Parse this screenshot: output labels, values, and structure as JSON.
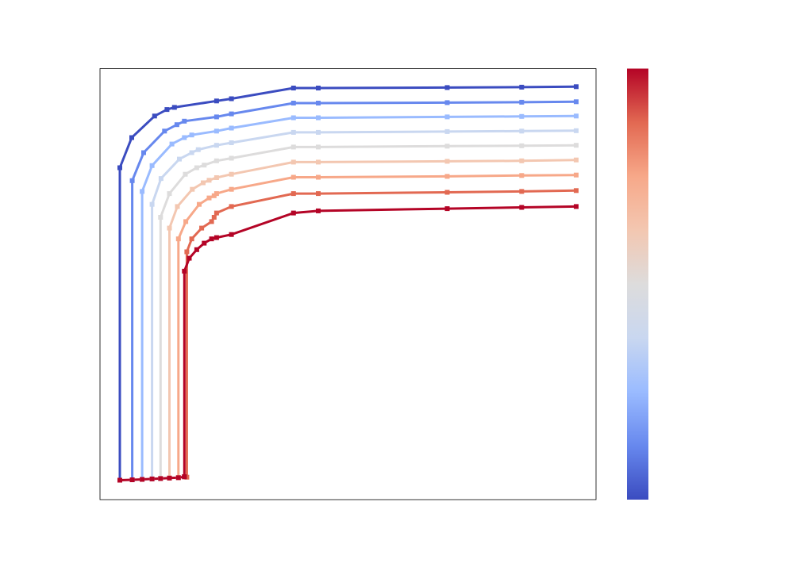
{
  "chart_data": {
    "type": "line",
    "title": "",
    "xlabel": "",
    "ylabel": "",
    "xlim": [
      0,
      100
    ],
    "ylim": [
      0,
      100
    ],
    "grid": false,
    "legend": "none",
    "marker": "square",
    "colormap": {
      "name": "coolwarm",
      "stops": [
        "#3b4cc0",
        "#6788ee",
        "#9abbff",
        "#c9d7f0",
        "#dddcdc",
        "#f3c7b1",
        "#f7a889",
        "#e26952",
        "#b40426"
      ],
      "position": "right",
      "tick_labels": []
    },
    "series": [
      {
        "color": "#3b4cc0",
        "x": [
          4.0,
          4.0,
          6.4,
          11.0,
          13.5,
          15.0,
          23.5,
          26.5,
          39.0,
          44.0,
          70.0,
          85.0,
          96.0
        ],
        "y": [
          4.5,
          77.0,
          84.0,
          89.0,
          90.5,
          91.0,
          92.5,
          93.0,
          95.5,
          95.5,
          95.6,
          95.7,
          95.8
        ]
      },
      {
        "color": "#6788ee",
        "x": [
          6.5,
          6.5,
          8.8,
          13.0,
          15.5,
          17.0,
          23.5,
          26.5,
          39.0,
          44.0,
          70.0,
          85.0,
          96.0
        ],
        "y": [
          4.6,
          74.0,
          80.5,
          85.5,
          87.0,
          87.8,
          88.8,
          89.5,
          92.0,
          92.0,
          92.1,
          92.2,
          92.3
        ]
      },
      {
        "color": "#9abbff",
        "x": [
          8.5,
          8.5,
          10.5,
          14.5,
          17.0,
          18.5,
          23.5,
          26.5,
          39.0,
          44.0,
          70.0,
          85.0,
          96.0
        ],
        "y": [
          4.7,
          71.5,
          77.5,
          82.5,
          84.0,
          84.6,
          85.5,
          86.2,
          88.6,
          88.6,
          88.8,
          88.9,
          89.0
        ]
      },
      {
        "color": "#c9d7f0",
        "x": [
          10.5,
          10.5,
          12.3,
          16.0,
          18.5,
          19.8,
          23.5,
          26.5,
          39.0,
          44.0,
          70.0,
          85.0,
          96.0
        ],
        "y": [
          4.8,
          68.5,
          74.5,
          79.0,
          80.5,
          81.2,
          82.2,
          82.8,
          85.2,
          85.2,
          85.4,
          85.5,
          85.6
        ]
      },
      {
        "color": "#dddcdc",
        "x": [
          12.2,
          12.2,
          14.0,
          17.2,
          19.5,
          21.0,
          23.5,
          26.5,
          39.0,
          44.0,
          70.0,
          85.0,
          96.0
        ],
        "y": [
          4.9,
          65.5,
          71.0,
          75.5,
          77.0,
          77.6,
          78.6,
          79.2,
          81.8,
          81.8,
          82.0,
          82.1,
          82.2
        ]
      },
      {
        "color": "#f3c7b1",
        "x": [
          14.0,
          14.0,
          15.6,
          18.6,
          20.8,
          22.0,
          23.5,
          26.5,
          39.0,
          44.0,
          70.0,
          85.0,
          96.0
        ],
        "y": [
          5.0,
          63.0,
          68.0,
          72.0,
          73.5,
          74.1,
          74.7,
          75.5,
          78.3,
          78.3,
          78.5,
          78.6,
          78.8
        ]
      },
      {
        "color": "#f7a889",
        "x": [
          15.8,
          15.8,
          17.3,
          20.0,
          22.0,
          23.0,
          23.5,
          26.5,
          39.0,
          44.0,
          70.0,
          85.0,
          96.0
        ],
        "y": [
          5.1,
          60.5,
          64.5,
          68.5,
          70.0,
          70.5,
          71.0,
          72.0,
          74.8,
          74.8,
          75.0,
          75.2,
          75.3
        ]
      },
      {
        "color": "#e26952",
        "x": [
          17.5,
          17.5,
          18.5,
          20.5,
          22.5,
          23.0,
          23.5,
          26.5,
          39.0,
          44.0,
          70.0,
          85.0,
          96.0
        ],
        "y": [
          5.2,
          57.5,
          60.5,
          63.0,
          64.5,
          65.5,
          66.5,
          68.0,
          71.0,
          71.0,
          71.3,
          71.5,
          71.7
        ]
      },
      {
        "color": "#b40426",
        "x": [
          17.0,
          17.0,
          18.0,
          19.5,
          21.0,
          22.5,
          23.5,
          26.5,
          39.0,
          44.0,
          70.0,
          85.0,
          96.0
        ],
        "y": [
          5.3,
          53.0,
          56.0,
          58.0,
          59.5,
          60.5,
          60.8,
          61.5,
          66.5,
          67.0,
          67.5,
          67.8,
          68.0
        ]
      },
      {
        "color": "#b40426",
        "x": [
          4.0,
          6.5,
          8.5,
          10.5,
          12.2,
          14.0,
          15.8,
          17.0
        ],
        "y": [
          4.5,
          4.6,
          4.7,
          4.8,
          4.9,
          5.0,
          5.1,
          5.3
        ]
      }
    ]
  }
}
